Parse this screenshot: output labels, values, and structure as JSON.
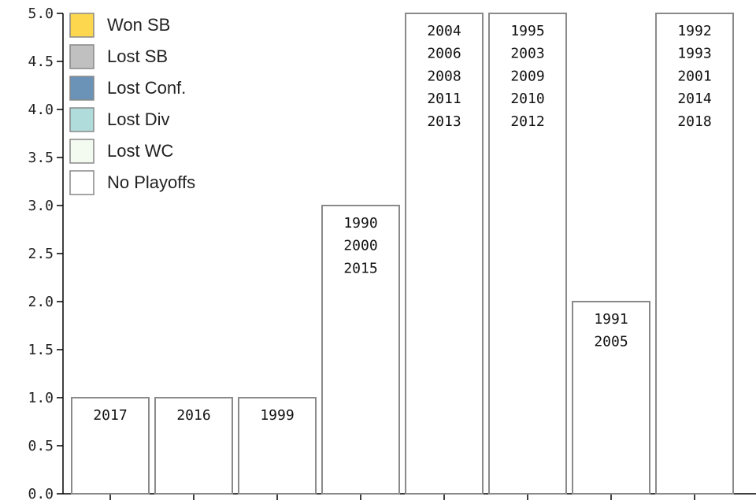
{
  "chart_data": {
    "type": "bar",
    "categories": [
      "0",
      "1",
      "2",
      "3",
      "4",
      "5",
      "6",
      "7"
    ],
    "values": [
      1,
      1,
      1,
      3,
      5,
      5,
      2,
      5
    ],
    "year_labels": [
      [
        "2017"
      ],
      [
        "2016"
      ],
      [
        "1999"
      ],
      [
        "1990",
        "2000",
        "2015"
      ],
      [
        "2004",
        "2006",
        "2008",
        "2011",
        "2013"
      ],
      [
        "1995",
        "2003",
        "2009",
        "2010",
        "2012"
      ],
      [
        "1991",
        "2005"
      ],
      [
        "1992",
        "1993",
        "2001",
        "2014",
        "2018"
      ]
    ],
    "bar_color": "#ffffff",
    "ylim": [
      0,
      5
    ],
    "yticks": [
      "0.0",
      "0.5",
      "1.0",
      "1.5",
      "2.0",
      "2.5",
      "3.0",
      "3.5",
      "4.0",
      "4.5",
      "5.0"
    ],
    "grid": false,
    "legend_position": "top-left",
    "legend": [
      {
        "label": "Won SB",
        "color": "#fdd84e"
      },
      {
        "label": "Lost SB",
        "color": "#c0c0c0"
      },
      {
        "label": "Lost Conf.",
        "color": "#6b93b8"
      },
      {
        "label": "Lost Div",
        "color": "#b1dcdc"
      },
      {
        "label": "Lost WC",
        "color": "#f3faf0"
      },
      {
        "label": "No Playoffs",
        "color": "#ffffff"
      }
    ]
  }
}
